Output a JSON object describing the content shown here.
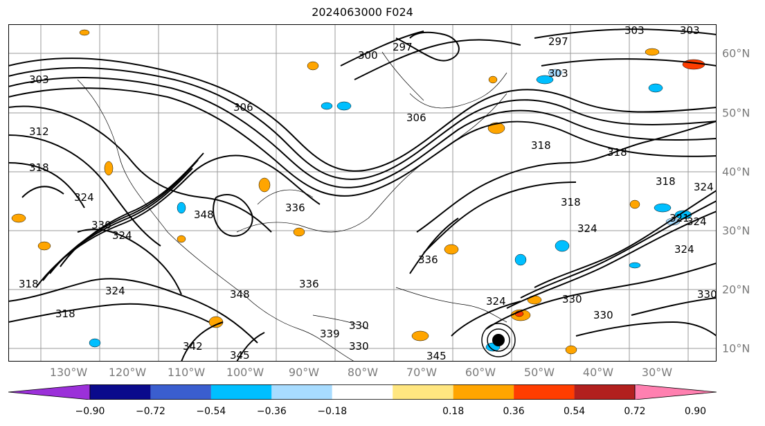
{
  "title": "2024063000 F024",
  "latitude_labels": [
    "60°N",
    "50°N",
    "40°N",
    "30°N",
    "20°N",
    "10°N"
  ],
  "longitude_labels": [
    "130°W",
    "120°W",
    "110°W",
    "100°W",
    "90°W",
    "80°W",
    "70°W",
    "60°W",
    "50°W",
    "40°W",
    "30°W"
  ],
  "colorbar": {
    "ticks": [
      "−0.90",
      "−0.72",
      "−0.54",
      "−0.36",
      "−0.18",
      "0.18",
      "0.36",
      "0.54",
      "0.72",
      "0.90"
    ],
    "colors": [
      "#9b30d9",
      "#0a0a8c",
      "#3a5ecf",
      "#00bfff",
      "#a8dcff",
      "#ffffff",
      "#ffe680",
      "#ffa500",
      "#ff3d00",
      "#b2201e",
      "#ff80b0"
    ]
  },
  "contour_labels": [
    "303",
    "303",
    "297",
    "297",
    "300",
    "303",
    "306",
    "306",
    "303",
    "312",
    "318",
    "324",
    "318",
    "318",
    "318",
    "321",
    "324",
    "324",
    "324",
    "318",
    "330",
    "348",
    "324",
    "336",
    "330",
    "318",
    "324",
    "318",
    "324",
    "330",
    "348",
    "336",
    "342",
    "345",
    "339",
    "330",
    "345",
    "330",
    "324",
    "336",
    "330"
  ],
  "markers": {
    "storm": "storm-center"
  }
}
